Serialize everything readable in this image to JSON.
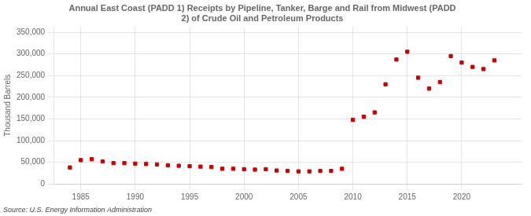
{
  "chart_data": {
    "type": "scatter",
    "title": "Annual East Coast (PADD 1) Receipts by Pipeline, Tanker, Barge and Rail from Midwest (PADD\n2) of Crude Oil and Petroleum Products",
    "ylabel": "Thousand Barrels",
    "annotation": "Source: U.S. Energy Information Administration",
    "x": [
      1984,
      1985,
      1986,
      1987,
      1988,
      1989,
      1990,
      1991,
      1992,
      1993,
      1994,
      1995,
      1996,
      1997,
      1998,
      1999,
      2000,
      2001,
      2002,
      2003,
      2004,
      2005,
      2006,
      2007,
      2008,
      2009,
      2010,
      2011,
      2012,
      2013,
      2014,
      2015,
      2016,
      2017,
      2018,
      2019,
      2020,
      2021,
      2022,
      2023
    ],
    "values": [
      38000,
      55000,
      57000,
      52000,
      48000,
      48000,
      47000,
      46000,
      45000,
      43000,
      42000,
      41000,
      40000,
      39000,
      35000,
      35000,
      34000,
      33000,
      34000,
      31000,
      30000,
      29000,
      29000,
      30000,
      30000,
      35000,
      148000,
      155000,
      165000,
      230000,
      287000,
      305000,
      245000,
      220000,
      235000,
      295000,
      280000,
      270000,
      265000,
      285000
    ],
    "color": "#cc0000",
    "marker": "square",
    "xlim": [
      1982.5,
      2025.5
    ],
    "xticks": [
      1985,
      1990,
      1995,
      2000,
      2005,
      2010,
      2015,
      2020
    ],
    "ylim": [
      0,
      362000
    ],
    "yticks": [
      0,
      {
        "value": 50000,
        "label": "50,000"
      },
      {
        "value": 100000,
        "label": "100,000"
      },
      {
        "value": 150000,
        "label": "150,000"
      },
      {
        "value": 200000,
        "label": "200,000"
      },
      {
        "value": 250000,
        "label": "250,000"
      },
      {
        "value": 300000,
        "label": "300,000"
      },
      {
        "value": 350000,
        "label": "350,000"
      }
    ],
    "grid": true
  }
}
